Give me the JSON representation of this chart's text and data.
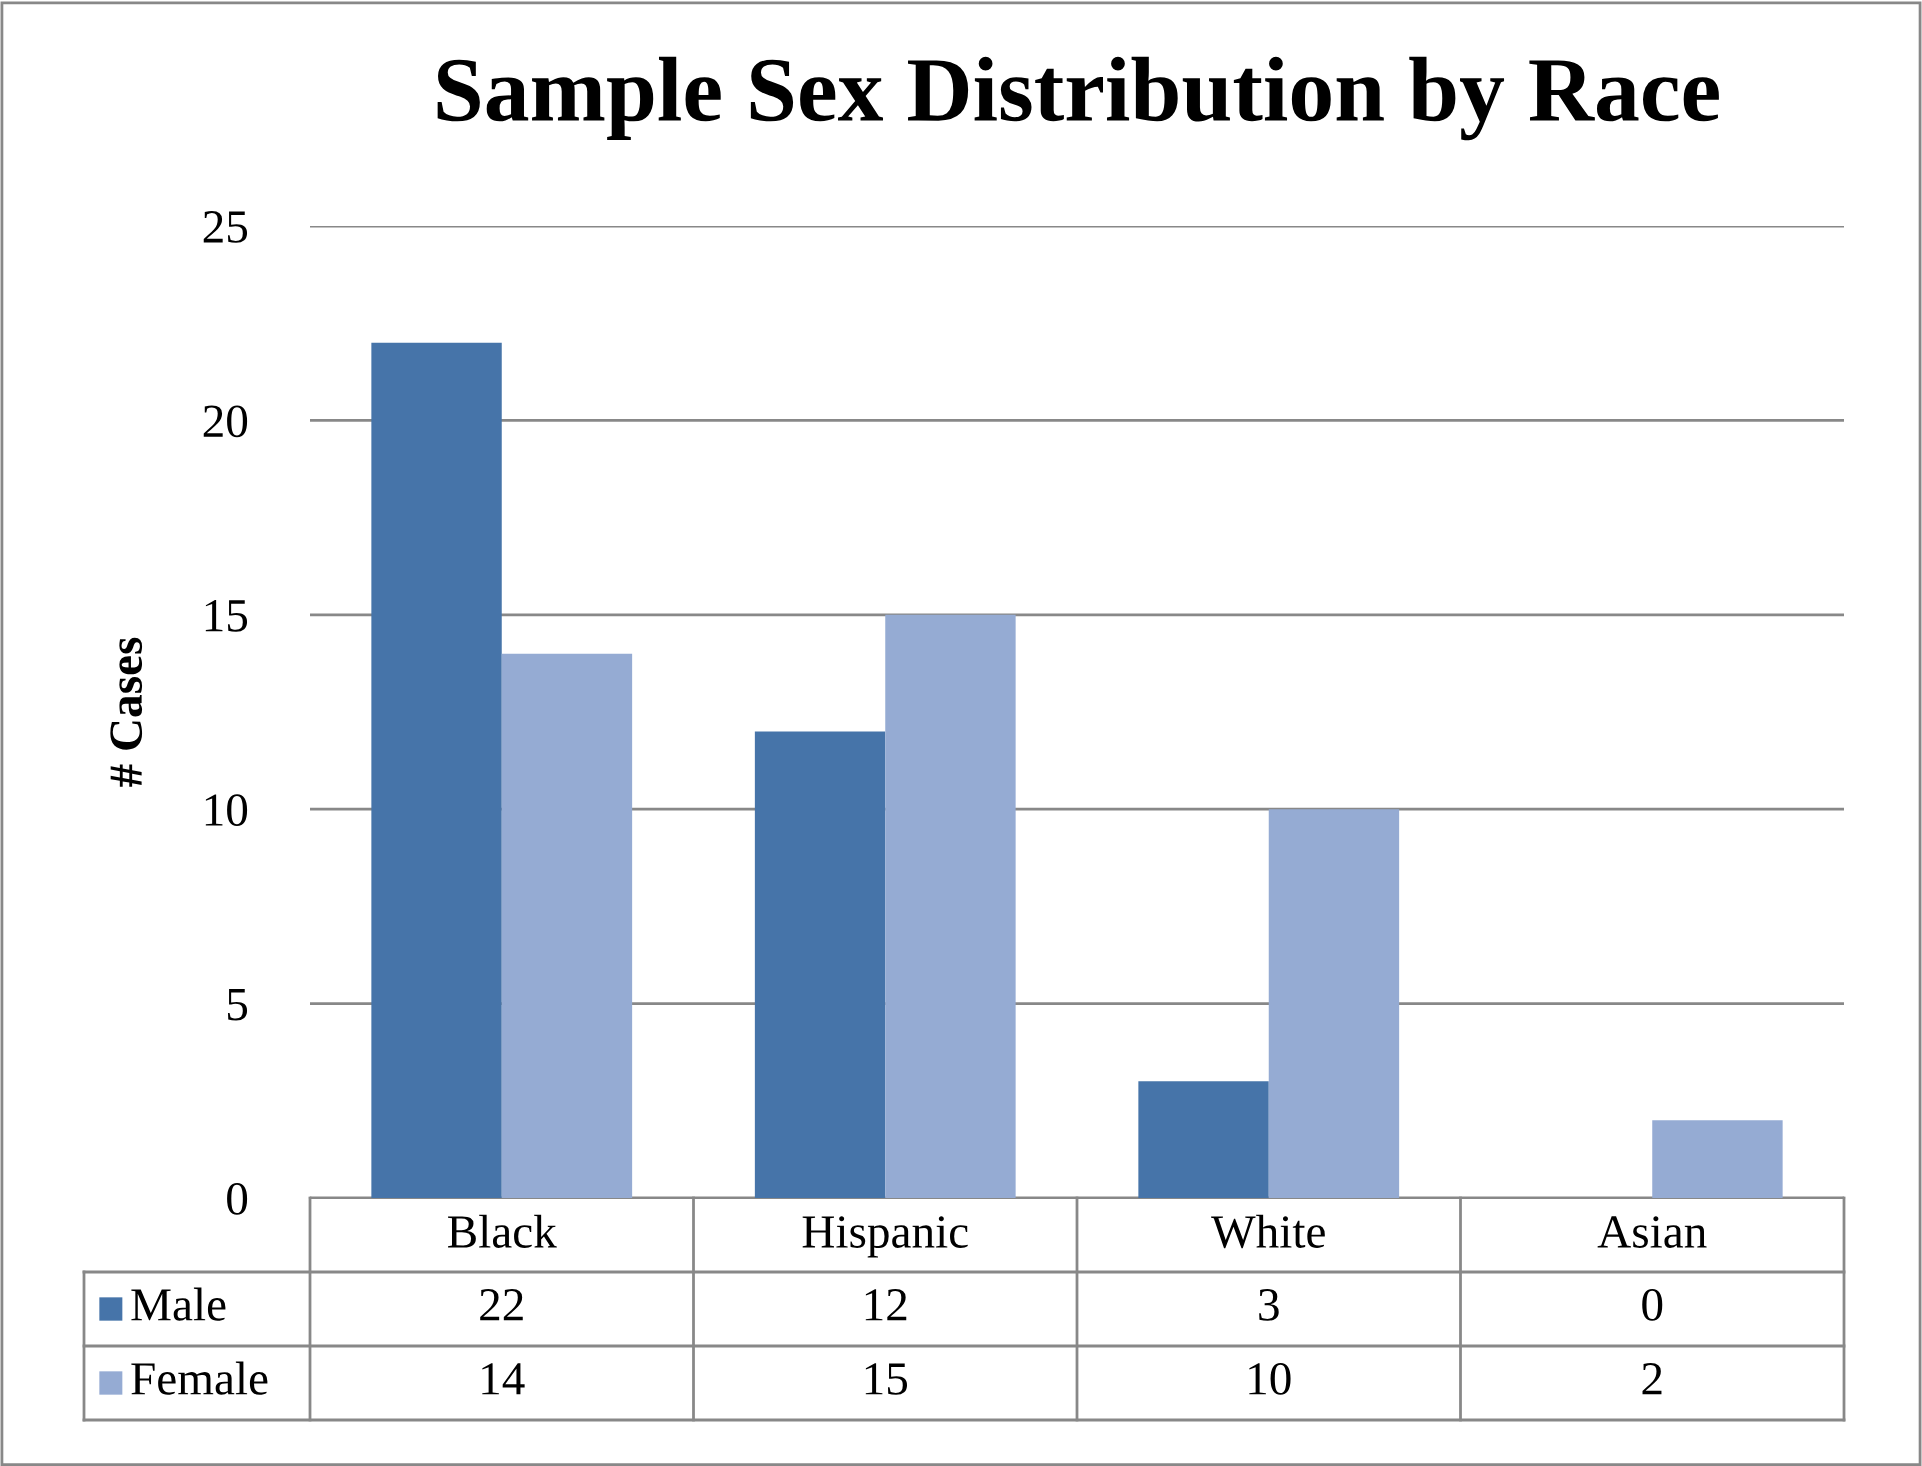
{
  "chart_data": {
    "type": "bar",
    "title": "Sample Sex Distribution by Race",
    "ylabel": "# Cases",
    "categories": [
      "Black",
      "Hispanic",
      "White",
      "Asian"
    ],
    "series": [
      {
        "name": "Male",
        "color": "#4674a9",
        "values": [
          22,
          12,
          3,
          0
        ]
      },
      {
        "name": "Female",
        "color": "#95abd3",
        "values": [
          14,
          15,
          10,
          2
        ]
      }
    ],
    "ylim": [
      0,
      25
    ],
    "yticks": [
      0,
      5,
      10,
      15,
      20,
      25
    ],
    "grid": "y",
    "legend": "bottom",
    "data_labels": true
  }
}
